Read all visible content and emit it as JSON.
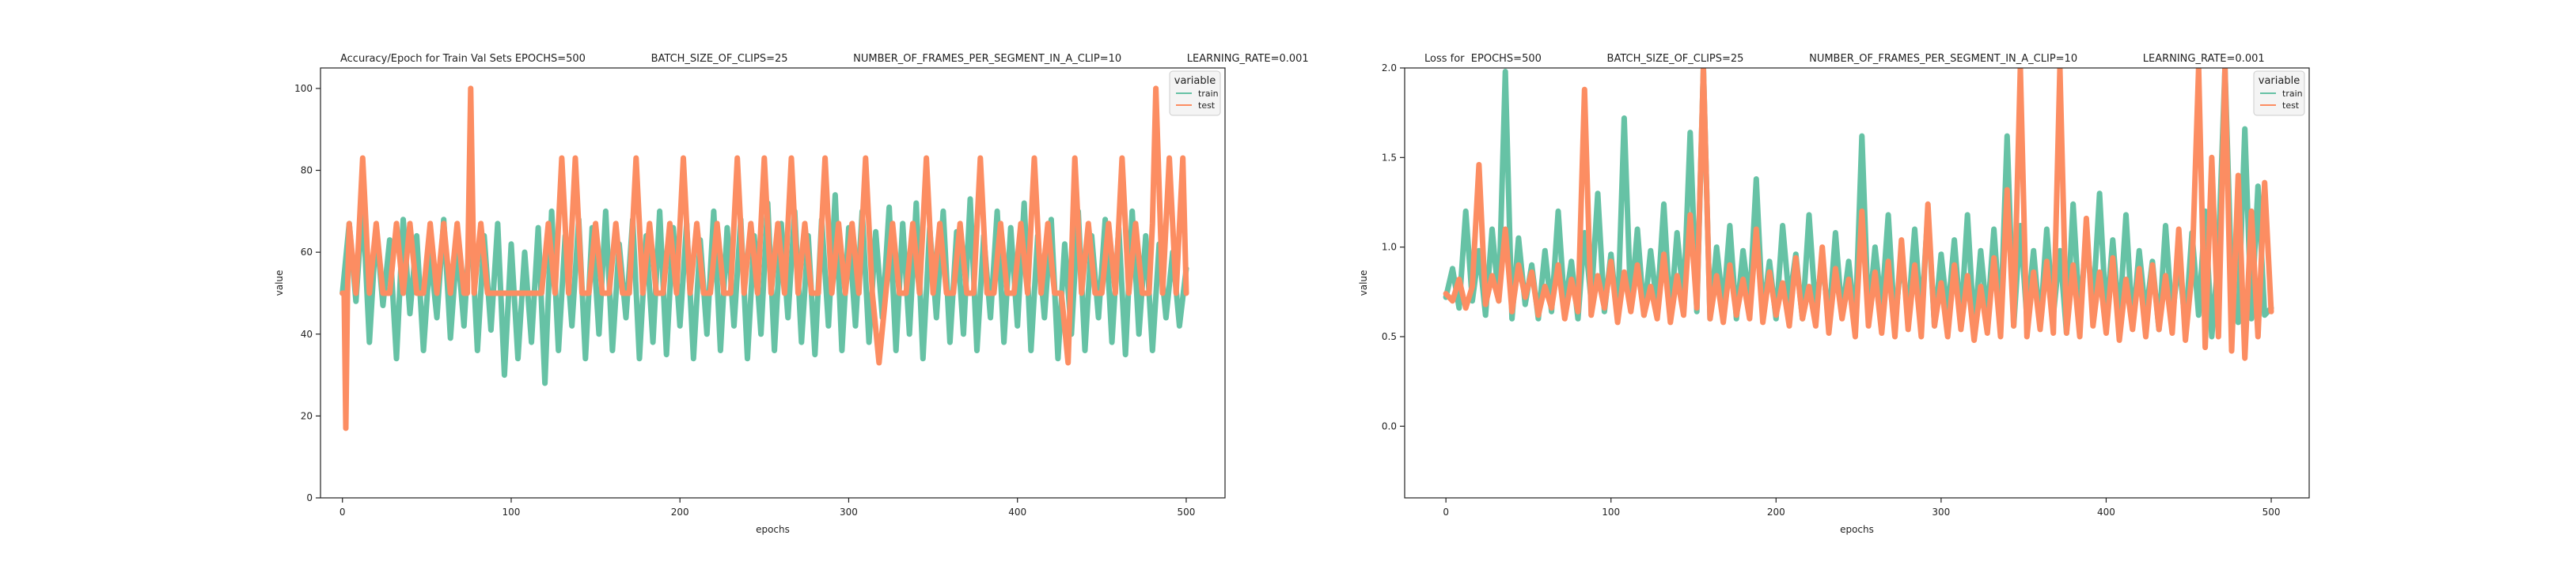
{
  "chart_data": [
    {
      "type": "line",
      "title": "Accuracy/Epoch for Train Val Sets EPOCHS=500                    BATCH_SIZE_OF_CLIPS=25                    NUMBER_OF_FRAMES_PER_SEGMENT_IN_A_CLIP=10                    LEARNING_RATE=0.001",
      "xlabel": "epochs",
      "ylabel": "value",
      "xlim": [
        -13,
        523
      ],
      "ylim": [
        0,
        105
      ],
      "xticks": [
        0,
        100,
        200,
        300,
        400,
        500
      ],
      "yticks": [
        0,
        20,
        40,
        60,
        80,
        100
      ],
      "grid": false,
      "legend": {
        "title": "variable",
        "placement": "top-right",
        "entries": [
          "train",
          "test"
        ]
      },
      "series": [
        {
          "name": "train",
          "color": "#66c2a5",
          "x": [
            0,
            4,
            8,
            12,
            16,
            20,
            24,
            28,
            32,
            36,
            40,
            44,
            48,
            52,
            56,
            60,
            64,
            68,
            72,
            76,
            80,
            84,
            88,
            92,
            96,
            100,
            104,
            108,
            112,
            116,
            120,
            124,
            128,
            132,
            136,
            140,
            144,
            148,
            152,
            156,
            160,
            164,
            168,
            172,
            176,
            180,
            184,
            188,
            192,
            196,
            200,
            204,
            208,
            212,
            216,
            220,
            224,
            228,
            232,
            236,
            240,
            244,
            248,
            252,
            256,
            260,
            264,
            268,
            272,
            276,
            280,
            284,
            288,
            292,
            296,
            300,
            304,
            308,
            312,
            316,
            320,
            324,
            328,
            332,
            336,
            340,
            344,
            348,
            352,
            356,
            360,
            364,
            368,
            372,
            376,
            380,
            384,
            388,
            392,
            396,
            400,
            404,
            408,
            412,
            416,
            420,
            424,
            428,
            432,
            436,
            440,
            444,
            448,
            452,
            456,
            460,
            464,
            468,
            472,
            476,
            480,
            484,
            488,
            492,
            496,
            500
          ],
          "values": [
            50,
            67,
            48,
            72,
            38,
            66,
            47,
            63,
            34,
            68,
            45,
            64,
            36,
            60,
            44,
            68,
            39,
            62,
            42,
            69,
            36,
            64,
            41,
            67,
            30,
            62,
            34,
            60,
            38,
            66,
            28,
            70,
            36,
            64,
            42,
            68,
            34,
            66,
            40,
            70,
            36,
            62,
            44,
            68,
            34,
            64,
            38,
            70,
            35,
            66,
            42,
            67,
            34,
            63,
            40,
            70,
            36,
            66,
            42,
            68,
            34,
            64,
            40,
            72,
            36,
            67,
            44,
            70,
            38,
            64,
            35,
            68,
            42,
            74,
            36,
            66,
            42,
            70,
            38,
            65,
            44,
            71,
            36,
            67,
            40,
            72,
            34,
            66,
            44,
            70,
            38,
            65,
            40,
            73,
            36,
            64,
            44,
            70,
            38,
            66,
            42,
            72,
            36,
            64,
            44,
            68,
            34,
            62,
            40,
            70,
            36,
            64,
            44,
            68,
            38,
            66,
            35,
            70,
            40,
            64,
            36,
            62,
            44,
            60,
            42,
            56
          ]
        },
        {
          "name": "test",
          "color": "#fc8d62",
          "x": [
            0,
            1,
            2,
            3,
            4,
            8,
            12,
            16,
            20,
            24,
            28,
            32,
            36,
            40,
            44,
            48,
            52,
            56,
            60,
            64,
            68,
            72,
            74,
            76,
            78,
            82,
            86,
            90,
            94,
            98,
            102,
            106,
            110,
            114,
            118,
            122,
            126,
            130,
            134,
            138,
            142,
            146,
            150,
            154,
            158,
            162,
            166,
            170,
            174,
            178,
            182,
            186,
            190,
            194,
            198,
            202,
            206,
            210,
            214,
            218,
            222,
            226,
            230,
            234,
            238,
            242,
            246,
            250,
            254,
            258,
            262,
            266,
            270,
            274,
            278,
            282,
            286,
            290,
            294,
            298,
            302,
            306,
            310,
            314,
            318,
            322,
            326,
            330,
            334,
            338,
            342,
            346,
            350,
            354,
            358,
            362,
            366,
            370,
            374,
            378,
            382,
            386,
            390,
            394,
            398,
            402,
            406,
            410,
            414,
            418,
            422,
            426,
            430,
            434,
            438,
            442,
            446,
            450,
            454,
            458,
            462,
            466,
            470,
            474,
            478,
            480,
            482,
            486,
            490,
            494,
            498,
            500
          ],
          "values": [
            50,
            50,
            17,
            50,
            67,
            50,
            83,
            50,
            67,
            50,
            50,
            67,
            50,
            67,
            50,
            50,
            67,
            50,
            67,
            50,
            67,
            50,
            50,
            100,
            50,
            67,
            50,
            50,
            50,
            50,
            50,
            50,
            50,
            50,
            50,
            67,
            50,
            83,
            50,
            83,
            50,
            50,
            67,
            50,
            50,
            67,
            50,
            50,
            83,
            50,
            67,
            50,
            50,
            67,
            50,
            83,
            50,
            67,
            50,
            50,
            67,
            50,
            50,
            83,
            50,
            67,
            50,
            83,
            50,
            67,
            50,
            83,
            50,
            67,
            50,
            50,
            83,
            50,
            67,
            50,
            67,
            50,
            83,
            50,
            33,
            50,
            67,
            50,
            50,
            67,
            50,
            83,
            50,
            67,
            50,
            50,
            67,
            50,
            50,
            83,
            50,
            50,
            67,
            50,
            50,
            67,
            50,
            83,
            50,
            67,
            50,
            50,
            33,
            83,
            50,
            67,
            50,
            50,
            67,
            50,
            83,
            50,
            67,
            50,
            50,
            67,
            100,
            50,
            83,
            50,
            83,
            50
          ]
        }
      ]
    },
    {
      "type": "line",
      "title": "Loss for  EPOCHS=500                    BATCH_SIZE_OF_CLIPS=25                    NUMBER_OF_FRAMES_PER_SEGMENT_IN_A_CLIP=10                    LEARNING_RATE=0.001",
      "xlabel": "epochs",
      "ylabel": "value",
      "xlim": [
        -25,
        523
      ],
      "ylim": [
        -0.4,
        2.0
      ],
      "xticks": [
        0,
        100,
        200,
        300,
        400,
        500
      ],
      "yticks": [
        0.0,
        0.5,
        1.0,
        1.5,
        2.0
      ],
      "grid": false,
      "legend": {
        "title": "variable",
        "placement": "top-right",
        "entries": [
          "train",
          "test"
        ]
      },
      "series": [
        {
          "name": "train",
          "color": "#66c2a5",
          "x": [
            0,
            4,
            8,
            12,
            16,
            20,
            24,
            28,
            32,
            36,
            40,
            44,
            48,
            52,
            56,
            60,
            64,
            68,
            72,
            76,
            80,
            84,
            88,
            92,
            96,
            100,
            104,
            108,
            112,
            116,
            120,
            124,
            128,
            132,
            136,
            140,
            144,
            148,
            152,
            156,
            160,
            164,
            168,
            172,
            176,
            180,
            184,
            188,
            192,
            196,
            200,
            204,
            208,
            212,
            216,
            220,
            224,
            228,
            232,
            236,
            240,
            244,
            248,
            252,
            256,
            260,
            264,
            268,
            272,
            276,
            280,
            284,
            288,
            292,
            296,
            300,
            304,
            308,
            312,
            316,
            320,
            324,
            328,
            332,
            336,
            340,
            344,
            348,
            352,
            356,
            360,
            364,
            368,
            372,
            376,
            380,
            384,
            388,
            392,
            396,
            400,
            404,
            408,
            412,
            416,
            420,
            424,
            428,
            432,
            436,
            440,
            444,
            448,
            452,
            456,
            460,
            464,
            468,
            472,
            476,
            480,
            484,
            488,
            492,
            496,
            500
          ],
          "values": [
            0.72,
            0.88,
            0.66,
            1.2,
            0.7,
            0.98,
            0.62,
            1.1,
            0.7,
            1.98,
            0.6,
            1.05,
            0.68,
            0.9,
            0.6,
            0.98,
            0.64,
            1.2,
            0.66,
            0.92,
            0.6,
            1.08,
            0.7,
            1.3,
            0.64,
            0.96,
            0.6,
            1.72,
            0.66,
            1.1,
            0.62,
            0.98,
            0.66,
            1.24,
            0.6,
            1.08,
            0.7,
            1.64,
            0.64,
            2.0,
            0.6,
            1.0,
            0.66,
            1.12,
            0.6,
            0.98,
            0.68,
            1.38,
            0.62,
            0.92,
            0.6,
            1.12,
            0.7,
            0.96,
            0.6,
            1.18,
            0.64,
            0.94,
            0.58,
            1.08,
            0.62,
            0.92,
            0.56,
            1.62,
            0.6,
            1.0,
            0.66,
            1.18,
            0.56,
            0.96,
            0.62,
            1.1,
            0.6,
            1.2,
            0.56,
            0.96,
            0.62,
            1.04,
            0.58,
            1.18,
            0.54,
            0.98,
            0.6,
            1.1,
            0.58,
            1.62,
            0.56,
            1.12,
            0.6,
            0.98,
            0.56,
            1.1,
            0.62,
            0.98,
            0.52,
            1.24,
            0.6,
            1.08,
            0.66,
            1.3,
            0.6,
            1.04,
            0.58,
            1.18,
            0.56,
            0.98,
            0.62,
            0.92,
            0.54,
            1.12,
            0.6,
            0.94,
            0.56,
            1.08,
            0.62,
            1.2,
            0.5,
            0.96,
            2.0,
            0.8,
            0.58,
            1.66,
            0.6,
            1.34,
            0.62,
            0.66
          ]
        },
        {
          "name": "test",
          "color": "#fc8d62",
          "x": [
            0,
            4,
            8,
            12,
            16,
            20,
            24,
            28,
            32,
            36,
            40,
            44,
            48,
            52,
            56,
            60,
            64,
            68,
            72,
            76,
            80,
            84,
            88,
            92,
            96,
            100,
            104,
            108,
            112,
            116,
            120,
            124,
            128,
            132,
            136,
            140,
            144,
            148,
            152,
            156,
            160,
            164,
            168,
            172,
            176,
            180,
            184,
            188,
            192,
            196,
            200,
            204,
            208,
            212,
            216,
            220,
            224,
            228,
            232,
            236,
            240,
            244,
            248,
            252,
            256,
            260,
            264,
            268,
            272,
            276,
            280,
            284,
            288,
            292,
            296,
            300,
            304,
            308,
            312,
            316,
            320,
            324,
            328,
            332,
            336,
            340,
            344,
            348,
            352,
            356,
            360,
            364,
            368,
            372,
            376,
            380,
            384,
            388,
            392,
            396,
            400,
            404,
            408,
            412,
            416,
            420,
            424,
            428,
            432,
            436,
            440,
            444,
            448,
            452,
            456,
            460,
            464,
            468,
            472,
            476,
            480,
            484,
            488,
            492,
            496,
            500
          ],
          "values": [
            0.74,
            0.7,
            0.82,
            0.66,
            0.78,
            1.46,
            0.68,
            0.84,
            0.7,
            1.1,
            0.64,
            0.9,
            0.72,
            0.86,
            0.62,
            0.78,
            0.66,
            0.9,
            0.6,
            0.82,
            0.64,
            1.88,
            0.62,
            0.84,
            0.66,
            0.92,
            0.58,
            0.86,
            0.64,
            0.9,
            0.62,
            0.78,
            0.6,
            0.96,
            0.58,
            0.84,
            0.62,
            1.18,
            0.66,
            2.0,
            0.6,
            0.84,
            0.58,
            0.9,
            0.62,
            0.82,
            0.6,
            1.1,
            0.58,
            0.86,
            0.62,
            0.8,
            0.56,
            0.94,
            0.6,
            0.78,
            0.56,
            1.0,
            0.52,
            0.88,
            0.6,
            0.82,
            0.5,
            1.2,
            0.56,
            0.86,
            0.52,
            0.92,
            0.5,
            1.04,
            0.54,
            0.9,
            0.5,
            1.24,
            0.56,
            0.8,
            0.5,
            0.9,
            0.54,
            0.84,
            0.48,
            0.78,
            0.52,
            0.94,
            0.5,
            1.32,
            0.56,
            2.0,
            0.5,
            0.86,
            0.54,
            0.92,
            0.52,
            2.0,
            0.52,
            0.9,
            0.5,
            1.16,
            0.56,
            0.86,
            0.52,
            0.94,
            0.48,
            0.82,
            0.54,
            0.88,
            0.5,
            0.9,
            0.54,
            0.84,
            0.52,
            1.1,
            0.48,
            0.86,
            2.0,
            0.44,
            1.5,
            0.5,
            2.0,
            0.42,
            1.4,
            0.38,
            1.2,
            0.5,
            1.36,
            0.64
          ]
        }
      ]
    }
  ]
}
